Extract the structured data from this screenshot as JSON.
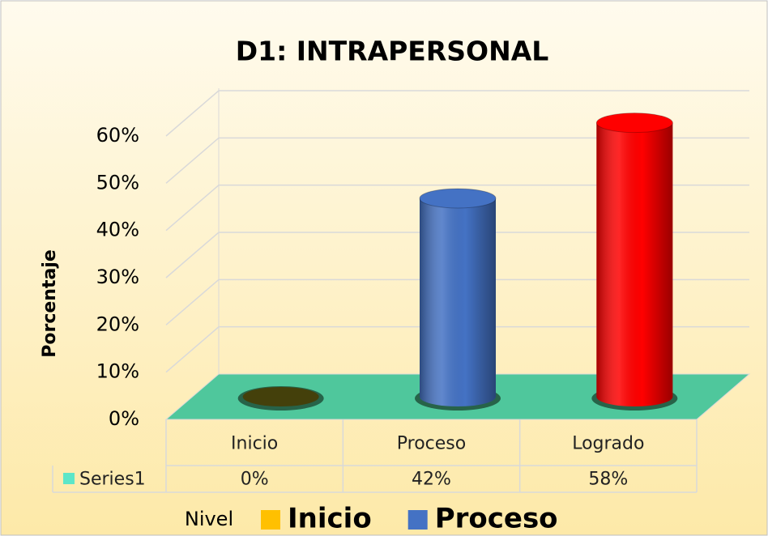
{
  "chart_data": {
    "type": "bar",
    "title": "D1: INTRAPERSONAL",
    "y_axis_label": "Porcentaje",
    "x_axis_label": "Nivel",
    "categories": [
      "Inicio",
      "Proceso",
      "Logrado"
    ],
    "series": [
      {
        "name": "Series1",
        "color": "#5ce6c8",
        "values": [
          0,
          42,
          58
        ],
        "value_labels": [
          "0%",
          "42%",
          "58%"
        ],
        "point_colors": [
          "#ffc000",
          "#4472c4",
          "#ff0000"
        ]
      }
    ],
    "ylim": [
      0,
      60
    ],
    "yticks": [
      {
        "value": 0,
        "label": "0%"
      },
      {
        "value": 10,
        "label": "10%"
      },
      {
        "value": 20,
        "label": "20%"
      },
      {
        "value": 30,
        "label": "30%"
      },
      {
        "value": 40,
        "label": "40%"
      },
      {
        "value": 50,
        "label": "50%"
      },
      {
        "value": 60,
        "label": "60%"
      }
    ],
    "grid": true,
    "legend": [
      {
        "name": "Inicio",
        "color": "#ffc000"
      },
      {
        "name": "Proceso",
        "color": "#4472c4"
      }
    ]
  }
}
